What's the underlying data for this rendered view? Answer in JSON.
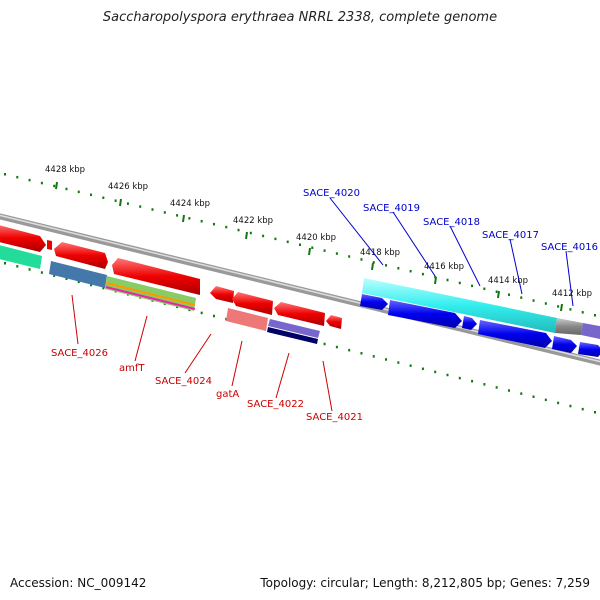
{
  "title": "Saccharopolyspora erythraea NRRL 2338, complete genome",
  "accession_label": "Accession: NC_009142",
  "summary_label": "Topology: circular; Length: 8,212,805 bp; Genes: 7,259",
  "ticks": [
    "4428 kbp",
    "4426 kbp",
    "4424 kbp",
    "4422 kbp",
    "4420 kbp",
    "4418 kbp",
    "4416 kbp",
    "4414 kbp",
    "4412 kbp"
  ],
  "gene_labels_forward": [
    "SACE_4020",
    "SACE_4019",
    "SACE_4018",
    "SACE_4017",
    "SACE_4016"
  ],
  "gene_labels_reverse": [
    "SACE_4026",
    "amfT",
    "SACE_4024",
    "gatA",
    "SACE_4022",
    "SACE_4021"
  ],
  "colors": {
    "forward_label": "#0000cc",
    "reverse_label": "#cc0000",
    "tick": "#117711",
    "backbone": "#888888",
    "red_gene": "#ee0000",
    "blue_gene": "#0000ee",
    "cyan_gene": "#33eeee"
  }
}
